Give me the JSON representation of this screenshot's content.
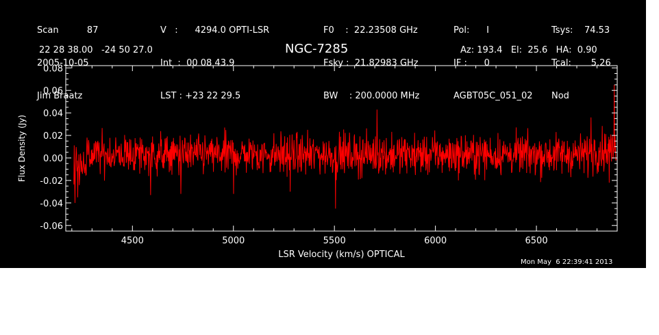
{
  "colors": {
    "background": "#000000",
    "foreground": "#ffffff",
    "spectrum": "#ff0000",
    "page": "#ffffff"
  },
  "header": {
    "col1": [
      "Scan          87",
      "2005-10-05",
      "Jim Braatz"
    ],
    "col2": [
      "V   :      4294.0 OPTI-LSR",
      "Int  :  00 08 43.9",
      "LST : +23 22 29.5"
    ],
    "col3": [
      "F0    :  22.23508 GHz",
      "Fsky :  21.82983 GHz",
      "BW    : 200.0000 MHz"
    ],
    "col4": [
      "Pol:      I",
      "IF :      0",
      "AGBT05C_051_02"
    ],
    "col5": [
      "Tsys:    74.53",
      "Tcal:       5.26",
      "Nod"
    ],
    "coords": "22 28 38.00   -24 50 27.0",
    "source": "NGC-7285",
    "pointing": "Az: 193.4   El:  25.6   HA:  0.90",
    "timestamp": "Mon May  6 22:39:41 2013"
  },
  "chart_data": {
    "type": "line",
    "title": "NGC-7285",
    "xlabel": "LSR Velocity (km/s) OPTICAL",
    "ylabel": "Flux Density (Jy)",
    "xlim": [
      4170,
      6900
    ],
    "ylim": [
      -0.065,
      0.082
    ],
    "xticks": [
      4500,
      5000,
      5500,
      6000,
      6500
    ],
    "xtick_labels": [
      "4500",
      "5000",
      "5500",
      "6000",
      "6500"
    ],
    "yticks": [
      -0.06,
      -0.04,
      -0.02,
      0.0,
      0.02,
      0.04,
      0.06,
      0.08
    ],
    "ytick_labels": [
      "-0.06",
      "-0.04",
      "-0.02",
      "0.00",
      "0.02",
      "0.04",
      "0.06",
      "0.08"
    ],
    "series": [
      {
        "color": "#ff0000",
        "x_start": 4210,
        "x_end": 6895,
        "n_points": 1400,
        "baseline": 0.003,
        "noise_sigma": 0.009,
        "features": [
          {
            "x": 4215,
            "y": -0.04
          },
          {
            "x": 4230,
            "y": -0.035
          },
          {
            "x": 4590,
            "y": -0.033
          },
          {
            "x": 4740,
            "y": -0.032
          },
          {
            "x": 5000,
            "y": -0.032
          },
          {
            "x": 5280,
            "y": -0.03
          },
          {
            "x": 5505,
            "y": -0.045
          },
          {
            "x": 5710,
            "y": 0.043
          },
          {
            "x": 6770,
            "y": 0.036
          },
          {
            "x": 6885,
            "y": 0.065
          },
          {
            "x": 6860,
            "y": -0.022
          }
        ]
      }
    ]
  }
}
